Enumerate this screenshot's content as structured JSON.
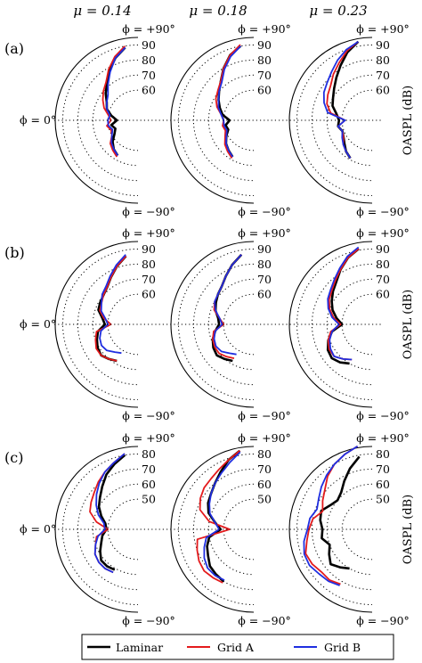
{
  "figure": {
    "column_titles": [
      "μ = 0.14",
      "μ = 0.18",
      "μ = 0.23"
    ],
    "row_labels": [
      "(a)",
      "(b)",
      "(c)"
    ],
    "phi_top": "ϕ = +90°",
    "phi_bottom": "ϕ = −90°",
    "phi_zero": "ϕ = 0°",
    "ylabel": "OASPL (dB)"
  },
  "legend": {
    "entries": [
      {
        "label": "Laminar",
        "color": "#000000"
      },
      {
        "label": "Grid A",
        "color": "#e41a1c"
      },
      {
        "label": "Grid B",
        "color": "#1f2ee0"
      }
    ]
  },
  "chart_data": [
    {
      "type": "line",
      "polar": true,
      "row": "(a)",
      "column": "μ = 0.14",
      "angle_unit": "deg",
      "r_ticks": [
        60,
        70,
        80,
        90
      ],
      "rlim": [
        40,
        95
      ],
      "series": [
        {
          "name": "Laminar",
          "theta": [
            80,
            70,
            60,
            50,
            40,
            30,
            20,
            10,
            0,
            -10,
            -20,
            -30,
            -40,
            -50,
            -60
          ],
          "r": [
            89,
            84,
            78,
            72,
            68,
            64,
            62,
            58,
            54,
            58,
            56,
            58,
            62,
            65,
            67
          ]
        },
        {
          "name": "Grid A",
          "theta": [
            80,
            70,
            60,
            50,
            40,
            30,
            20,
            10,
            0,
            -10,
            -20,
            -30,
            -40,
            -50,
            -60
          ],
          "r": [
            90,
            85,
            79,
            73,
            70,
            67,
            64,
            60,
            58,
            61,
            59,
            60,
            64,
            66,
            68
          ]
        },
        {
          "name": "Grid B",
          "theta": [
            80,
            70,
            60,
            50,
            40,
            30,
            20,
            10,
            0,
            -10,
            -20,
            -30,
            -40,
            -50,
            -60
          ],
          "r": [
            89,
            84,
            77,
            71,
            66,
            64,
            62,
            59,
            60,
            60,
            58,
            60,
            63,
            65,
            67
          ]
        }
      ]
    },
    {
      "type": "line",
      "polar": true,
      "row": "(a)",
      "column": "μ = 0.18",
      "angle_unit": "deg",
      "r_ticks": [
        60,
        70,
        80,
        90
      ],
      "rlim": [
        40,
        95
      ],
      "series": [
        {
          "name": "Laminar",
          "theta": [
            80,
            70,
            60,
            50,
            40,
            30,
            20,
            10,
            0,
            -10,
            -20,
            -30,
            -40,
            -50,
            -60
          ],
          "r": [
            90,
            86,
            80,
            74,
            70,
            67,
            64,
            61,
            56,
            59,
            58,
            61,
            64,
            66,
            68
          ]
        },
        {
          "name": "Grid A",
          "theta": [
            80,
            70,
            60,
            50,
            40,
            30,
            20,
            10,
            0,
            -10,
            -20,
            -30,
            -40,
            -50,
            -60
          ],
          "r": [
            91,
            86,
            80,
            74,
            71,
            69,
            66,
            62,
            60,
            61,
            60,
            62,
            65,
            67,
            69
          ]
        },
        {
          "name": "Grid B",
          "theta": [
            80,
            70,
            60,
            50,
            40,
            30,
            20,
            10,
            0,
            -10,
            -20,
            -30,
            -40,
            -50,
            -60
          ],
          "r": [
            90,
            85,
            79,
            73,
            70,
            67,
            65,
            62,
            60,
            60,
            59,
            61,
            64,
            66,
            68
          ]
        }
      ]
    },
    {
      "type": "line",
      "polar": true,
      "row": "(a)",
      "column": "μ = 0.23",
      "angle_unit": "deg",
      "r_ticks": [
        60,
        70,
        80,
        90
      ],
      "rlim": [
        40,
        95
      ],
      "series": [
        {
          "name": "Laminar",
          "theta": [
            80,
            70,
            60,
            50,
            40,
            30,
            20,
            10,
            0,
            -10,
            -20,
            -30,
            -40,
            -50,
            -60
          ],
          "r": [
            93,
            88,
            82,
            77,
            73,
            70,
            68,
            64,
            62,
            63,
            61,
            62,
            64,
            67,
            69
          ]
        },
        {
          "name": "Grid A",
          "theta": [
            80,
            70,
            60,
            50,
            40,
            30,
            20,
            10,
            0,
            -10,
            -20,
            -30,
            -40,
            -50,
            -60
          ],
          "r": [
            93,
            89,
            84,
            80,
            76,
            74,
            72,
            68,
            58,
            63,
            61,
            62,
            65,
            67,
            69
          ]
        },
        {
          "name": "Grid B",
          "theta": [
            80,
            70,
            60,
            50,
            40,
            30,
            20,
            10,
            0,
            -10,
            -20,
            -30,
            -40,
            -50,
            -60
          ],
          "r": [
            93,
            90,
            86,
            82,
            79,
            77,
            74,
            70,
            58,
            63,
            61,
            63,
            65,
            67,
            69
          ]
        }
      ]
    },
    {
      "type": "line",
      "polar": true,
      "row": "(b)",
      "column": "μ = 0.14",
      "angle_unit": "deg",
      "r_ticks": [
        60,
        70,
        80,
        90
      ],
      "rlim": [
        40,
        95
      ],
      "series": [
        {
          "name": "Laminar",
          "theta": [
            80,
            70,
            60,
            50,
            40,
            30,
            20,
            10,
            0,
            -10,
            -20,
            -30,
            -40,
            -50,
            -60
          ],
          "r": [
            86,
            81,
            76,
            72,
            70,
            69,
            68,
            64,
            62,
            67,
            69,
            71,
            72,
            70,
            68
          ]
        },
        {
          "name": "Grid A",
          "theta": [
            80,
            70,
            60,
            50,
            40,
            30,
            20,
            10,
            0,
            -10,
            -20,
            -30,
            -40,
            -50,
            -60
          ],
          "r": [
            86,
            81,
            76,
            72,
            70,
            68,
            67,
            63,
            58,
            68,
            70,
            72,
            72,
            70,
            68
          ]
        },
        {
          "name": "Grid B",
          "theta": [
            80,
            70,
            60,
            50,
            40,
            30,
            20,
            10,
            0,
            -10,
            -20,
            -30,
            -40,
            -50,
            -60
          ],
          "r": [
            87,
            82,
            77,
            73,
            71,
            68,
            66,
            62,
            60,
            65,
            67,
            68,
            67,
            64,
            62
          ]
        }
      ]
    },
    {
      "type": "line",
      "polar": true,
      "row": "(b)",
      "column": "μ = 0.18",
      "angle_unit": "deg",
      "r_ticks": [
        60,
        70,
        80,
        90
      ],
      "rlim": [
        40,
        95
      ],
      "series": [
        {
          "name": "Laminar",
          "theta": [
            80,
            70,
            60,
            50,
            40,
            30,
            20,
            10,
            0,
            -10,
            -20,
            -30,
            -40,
            -50,
            -60
          ],
          "r": [
            87,
            82,
            77,
            73,
            71,
            69,
            67,
            64,
            63,
            66,
            69,
            71,
            72,
            70,
            68
          ]
        },
        {
          "name": "Grid A",
          "theta": [
            80,
            70,
            60,
            50,
            40,
            30,
            20,
            10,
            0,
            -10,
            -20,
            -30,
            -40,
            -50,
            -60
          ],
          "r": [
            87,
            82,
            77,
            73,
            71,
            70,
            68,
            63,
            60,
            67,
            69,
            70,
            70,
            68,
            66
          ]
        },
        {
          "name": "Grid B",
          "theta": [
            80,
            70,
            60,
            50,
            40,
            30,
            20,
            10,
            0,
            -10,
            -20,
            -30,
            -40,
            -50,
            -60
          ],
          "r": [
            87,
            82,
            77,
            73,
            71,
            70,
            67,
            63,
            61,
            66,
            68,
            69,
            68,
            65,
            63
          ]
        }
      ]
    },
    {
      "type": "line",
      "polar": true,
      "row": "(b)",
      "column": "μ = 0.23",
      "angle_unit": "deg",
      "r_ticks": [
        60,
        70,
        80,
        90
      ],
      "rlim": [
        40,
        95
      ],
      "series": [
        {
          "name": "Laminar",
          "theta": [
            80,
            70,
            60,
            50,
            40,
            30,
            20,
            10,
            0,
            -10,
            -20,
            -30,
            -40,
            -50,
            -60
          ],
          "r": [
            91,
            87,
            82,
            77,
            74,
            71,
            68,
            64,
            60,
            67,
            71,
            74,
            75,
            73,
            70
          ]
        },
        {
          "name": "Grid A",
          "theta": [
            80,
            70,
            60,
            50,
            40,
            30,
            20,
            10,
            0,
            -10,
            -20,
            -30,
            -40,
            -50,
            -60
          ],
          "r": [
            91,
            87,
            82,
            78,
            75,
            73,
            70,
            66,
            61,
            68,
            71,
            73,
            73,
            70,
            67
          ]
        },
        {
          "name": "Grid B",
          "theta": [
            80,
            70,
            60,
            50,
            40,
            30,
            20,
            10,
            0,
            -10,
            -20,
            -30,
            -40,
            -50,
            -60
          ],
          "r": [
            92,
            88,
            83,
            79,
            76,
            74,
            71,
            67,
            62,
            67,
            70,
            72,
            73,
            70,
            67
          ]
        }
      ]
    },
    {
      "type": "line",
      "polar": true,
      "row": "(c)",
      "column": "μ = 0.14",
      "angle_unit": "deg",
      "r_ticks": [
        50,
        60,
        70,
        80
      ],
      "rlim": [
        30,
        85
      ],
      "series": [
        {
          "name": "Laminar",
          "theta": [
            80,
            70,
            60,
            50,
            40,
            30,
            20,
            10,
            0,
            -10,
            -20,
            -30,
            -40,
            -50,
            -60
          ],
          "r": [
            80,
            76,
            72,
            67,
            63,
            60,
            56,
            52,
            51,
            54,
            56,
            59,
            62,
            62,
            61
          ]
        },
        {
          "name": "Grid A",
          "theta": [
            80,
            70,
            60,
            50,
            40,
            30,
            20,
            10,
            0,
            -10,
            -20,
            -30,
            -40,
            -50,
            -60
          ],
          "r": [
            81,
            77,
            74,
            71,
            68,
            66,
            64,
            58,
            50,
            58,
            60,
            63,
            64,
            64,
            63
          ]
        },
        {
          "name": "Grid B",
          "theta": [
            80,
            70,
            60,
            50,
            40,
            30,
            20,
            10,
            0,
            -10,
            -20,
            -30,
            -40,
            -50,
            -60
          ],
          "r": [
            81,
            77,
            74,
            70,
            66,
            62,
            58,
            53,
            52,
            57,
            60,
            63,
            64,
            64,
            63
          ]
        }
      ]
    },
    {
      "type": "line",
      "polar": true,
      "row": "(c)",
      "column": "μ = 0.18",
      "angle_unit": "deg",
      "r_ticks": [
        50,
        60,
        70,
        80
      ],
      "rlim": [
        30,
        85
      ],
      "series": [
        {
          "name": "Laminar",
          "theta": [
            80,
            70,
            60,
            50,
            40,
            30,
            20,
            10,
            0,
            -10,
            -20,
            -30,
            -40,
            -50,
            -60
          ],
          "r": [
            83,
            79,
            74,
            70,
            67,
            65,
            62,
            56,
            52,
            60,
            63,
            65,
            68,
            69,
            70
          ]
        },
        {
          "name": "Grid A",
          "theta": [
            80,
            70,
            60,
            50,
            40,
            30,
            20,
            10,
            0,
            -10,
            -20,
            -30,
            -40,
            -50,
            -60
          ],
          "r": [
            83,
            79,
            76,
            74,
            73,
            71,
            68,
            60,
            46,
            68,
            70,
            72,
            73,
            72,
            71
          ]
        },
        {
          "name": "Grid B",
          "theta": [
            80,
            70,
            60,
            50,
            40,
            30,
            20,
            10,
            0,
            -10,
            -20,
            -30,
            -40,
            -50,
            -60
          ],
          "r": [
            82,
            77,
            73,
            70,
            67,
            64,
            61,
            56,
            53,
            62,
            65,
            68,
            70,
            70,
            69
          ]
        }
      ]
    },
    {
      "type": "line",
      "polar": true,
      "row": "(c)",
      "column": "μ = 0.23",
      "angle_unit": "deg",
      "r_ticks": [
        50,
        60,
        70,
        80
      ],
      "rlim": [
        30,
        85
      ],
      "series": [
        {
          "name": "Laminar",
          "theta": [
            80,
            70,
            60,
            50,
            40,
            30,
            20,
            10,
            0,
            -10,
            -20,
            -30,
            -40,
            -50,
            -60
          ],
          "r": [
            79,
            73,
            67,
            62,
            60,
            62,
            66,
            65,
            63,
            64,
            60,
            63,
            66,
            63,
            60
          ]
        },
        {
          "name": "Grid A",
          "theta": [
            80,
            70,
            60,
            50,
            40,
            30,
            20,
            10,
            0,
            -10,
            -20,
            -30,
            -40,
            -50,
            -60
          ],
          "r": [
            86,
            83,
            80,
            76,
            71,
            68,
            65,
            70,
            72,
            74,
            77,
            76,
            74,
            74,
            72
          ]
        },
        {
          "name": "Grid B",
          "theta": [
            80,
            70,
            60,
            50,
            40,
            30,
            20,
            10,
            0,
            -10,
            -20,
            -30,
            -40,
            -50,
            -60
          ],
          "r": [
            86,
            83,
            80,
            77,
            74,
            71,
            69,
            72,
            73,
            76,
            78,
            78,
            76,
            75,
            73
          ]
        }
      ]
    }
  ]
}
